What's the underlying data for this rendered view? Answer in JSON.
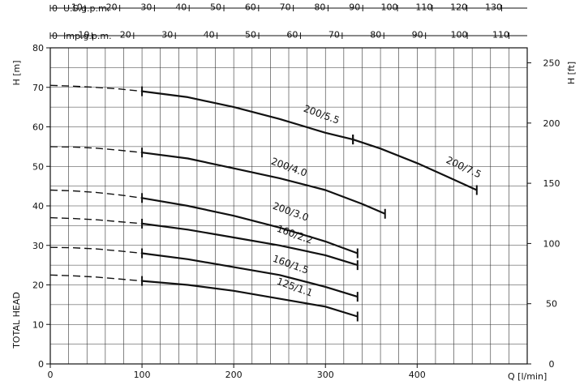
{
  "chart_data": {
    "type": "line",
    "xlabel": "Q [l/min]",
    "ylabel_left": "H [m]",
    "ylabel_right": "H [ft]",
    "corner_label": "TOTAL HEAD",
    "xlim": [
      0,
      520
    ],
    "ylim": [
      0,
      80
    ],
    "x_ticks": [
      0,
      100,
      200,
      300,
      400
    ],
    "y_ticks": [
      0,
      10,
      20,
      30,
      40,
      50,
      60,
      70,
      80
    ],
    "ft_ticks": [
      0,
      50,
      100,
      150,
      200,
      250
    ],
    "top_axes": [
      {
        "label": "U.S.g.p.m.",
        "factor": 0.264172,
        "ticks": [
          0,
          10,
          20,
          30,
          40,
          50,
          60,
          70,
          80,
          90,
          100,
          110,
          120,
          130
        ]
      },
      {
        "label": "Imp.g.p.m.",
        "factor": 0.219969,
        "ticks": [
          0,
          10,
          20,
          30,
          40,
          50,
          60,
          70,
          80,
          90,
          100,
          110
        ]
      }
    ],
    "grid": true,
    "series": [
      {
        "name": "200/5.5",
        "start_x": 100,
        "end_x": 330,
        "x": [
          0,
          25,
          50,
          75,
          100,
          150,
          200,
          250,
          300,
          330
        ],
        "y": [
          70.5,
          70.3,
          70.0,
          69.6,
          69.0,
          67.5,
          65.0,
          62.0,
          58.5,
          56.8
        ]
      },
      {
        "name": "200/7.5",
        "start_x": 330,
        "end_x": 465,
        "x": [
          330,
          360,
          400,
          430,
          465
        ],
        "y": [
          56.8,
          54.5,
          50.8,
          47.7,
          44.0
        ]
      },
      {
        "name": "200/4.0",
        "start_x": 100,
        "end_x": 365,
        "x": [
          0,
          25,
          50,
          75,
          100,
          150,
          200,
          250,
          300,
          340,
          365
        ],
        "y": [
          55.0,
          54.9,
          54.6,
          54.1,
          53.5,
          52.0,
          49.5,
          47.0,
          44.0,
          40.5,
          38.0
        ]
      },
      {
        "name": "200/3.0",
        "start_x": 100,
        "end_x": 335,
        "x": [
          0,
          25,
          50,
          75,
          100,
          150,
          200,
          250,
          300,
          335
        ],
        "y": [
          44.0,
          43.8,
          43.4,
          42.8,
          42.0,
          40.0,
          37.5,
          34.5,
          31.0,
          28.0
        ]
      },
      {
        "name": "160/2.2",
        "start_x": 100,
        "end_x": 335,
        "x": [
          0,
          25,
          50,
          75,
          100,
          150,
          200,
          250,
          300,
          335
        ],
        "y": [
          37.0,
          36.8,
          36.5,
          36.0,
          35.5,
          34.0,
          32.0,
          30.0,
          27.5,
          25.0
        ]
      },
      {
        "name": "160/1.5",
        "start_x": 100,
        "end_x": 335,
        "x": [
          0,
          25,
          50,
          75,
          100,
          150,
          200,
          250,
          300,
          335
        ],
        "y": [
          29.5,
          29.4,
          29.1,
          28.6,
          28.0,
          26.5,
          24.5,
          22.5,
          19.5,
          17.0
        ]
      },
      {
        "name": "125/1.1",
        "start_x": 100,
        "end_x": 335,
        "x": [
          0,
          25,
          50,
          75,
          100,
          150,
          200,
          250,
          300,
          335
        ],
        "y": [
          22.5,
          22.3,
          22.0,
          21.5,
          21.0,
          20.0,
          18.5,
          16.5,
          14.5,
          12.0
        ]
      }
    ]
  }
}
